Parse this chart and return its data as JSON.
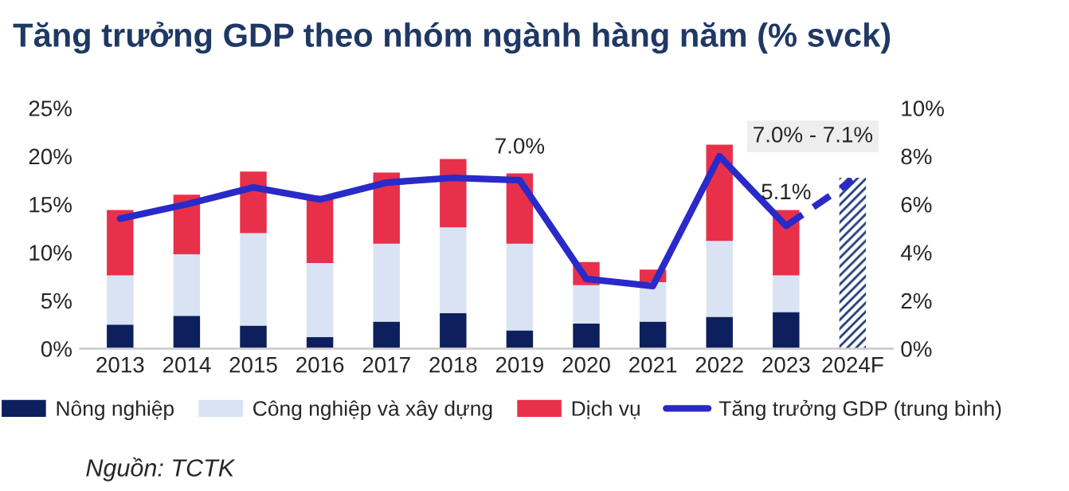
{
  "chart_data": {
    "type": "bar",
    "stacked": true,
    "title": "Tăng trưởng GDP theo nhóm ngành hàng năm (% svck)",
    "categories": [
      "2013",
      "2014",
      "2015",
      "2016",
      "2017",
      "2018",
      "2019",
      "2020",
      "2021",
      "2022",
      "2023",
      "2024F"
    ],
    "series": [
      {
        "name": "Nông nghiệp",
        "color": "#0d1f5c",
        "values": [
          2.5,
          3.4,
          2.4,
          1.2,
          2.8,
          3.7,
          1.9,
          2.6,
          2.8,
          3.3,
          3.8,
          null
        ]
      },
      {
        "name": "Công nghiệp và xây dựng",
        "color": "#dae3f3",
        "values": [
          5.1,
          6.4,
          9.6,
          7.7,
          8.1,
          8.9,
          9.0,
          4.0,
          4.1,
          7.9,
          3.8,
          null
        ]
      },
      {
        "name": "Dịch vụ",
        "color": "#e8304a",
        "values": [
          6.8,
          6.2,
          6.4,
          7.0,
          7.4,
          7.1,
          7.3,
          2.4,
          1.3,
          10.0,
          6.8,
          null
        ]
      },
      {
        "type": "bar",
        "axis": "y2",
        "color": "#1f3a7a",
        "values": [
          null,
          null,
          null,
          null,
          null,
          null,
          null,
          null,
          null,
          null,
          null,
          7.1
        ]
      },
      {
        "name": "Tăng trưởng GDP (trung bình)",
        "type": "line",
        "axis": "y2",
        "color": "#2a2ac8",
        "line_style": "solid",
        "values": [
          5.4,
          6.0,
          6.7,
          6.2,
          6.9,
          7.1,
          7.0,
          2.9,
          2.6,
          8.0,
          5.1,
          null
        ],
        "value_labels": [
          null,
          null,
          null,
          null,
          null,
          null,
          "7.0%",
          null,
          null,
          null,
          "5.1%",
          null
        ]
      },
      {
        "type": "line",
        "axis": "y2",
        "color": "#2a2ac8",
        "line_style": "dashed",
        "values": [
          null,
          null,
          null,
          null,
          null,
          null,
          null,
          null,
          null,
          null,
          5.1,
          7.0
        ]
      }
    ],
    "ylim": [
      0,
      25
    ],
    "yticks": [
      {
        "value": 0,
        "label": "0%"
      },
      {
        "value": 5,
        "label": "5%"
      },
      {
        "value": 10,
        "label": "10%"
      },
      {
        "value": 15,
        "label": "15%"
      },
      {
        "value": 20,
        "label": "20%"
      },
      {
        "value": 25,
        "label": "25%"
      }
    ],
    "y2lim": [
      0,
      10
    ],
    "y2ticks": [
      {
        "value": 0,
        "label": "0%"
      },
      {
        "value": 2,
        "label": "2%"
      },
      {
        "value": 4,
        "label": "4%"
      },
      {
        "value": 6,
        "label": "6%"
      },
      {
        "value": 8,
        "label": "8%"
      },
      {
        "value": 10,
        "label": "10%"
      }
    ],
    "grid": false,
    "legend": "bottom",
    "annotations": [
      "7.0% - 7.1%",
      "Nguồn: TCTK"
    ]
  }
}
